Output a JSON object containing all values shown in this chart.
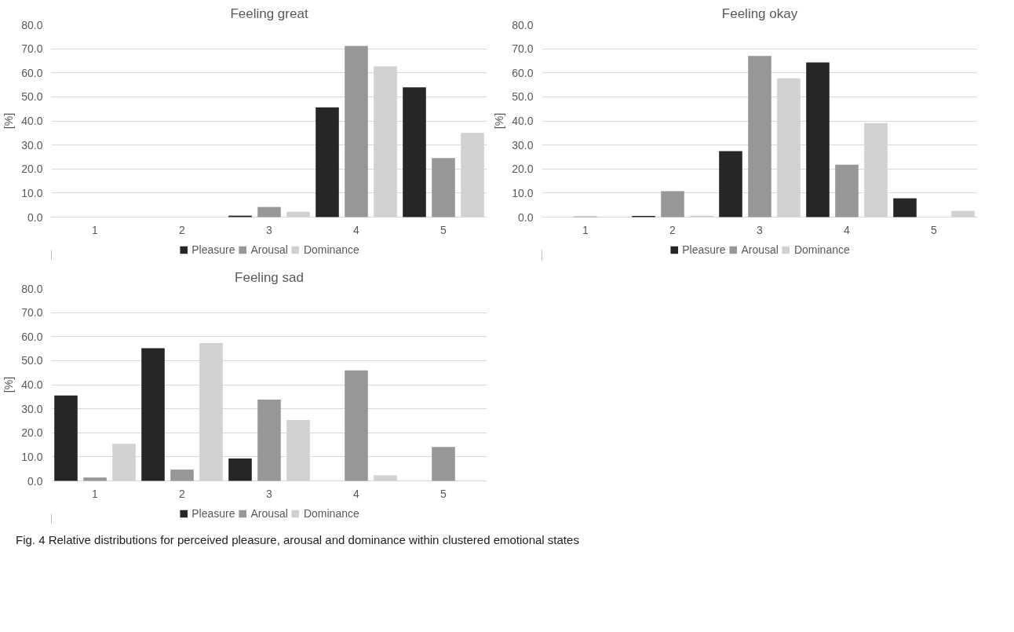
{
  "chart_data": [
    {
      "type": "bar",
      "title": "Feeling great",
      "ylabel": "[%]",
      "categories": [
        "1",
        "2",
        "3",
        "4",
        "5"
      ],
      "ylim": [
        0,
        80
      ],
      "yticks": [
        {
          "value": 0,
          "label": "0.0"
        },
        {
          "value": 10,
          "label": "10.0"
        },
        {
          "value": 20,
          "label": "20.0"
        },
        {
          "value": 30,
          "label": "30.0"
        },
        {
          "value": 40,
          "label": "40.0"
        },
        {
          "value": 50,
          "label": "50.0"
        },
        {
          "value": 60,
          "label": "60.0"
        },
        {
          "value": 70,
          "label": "70.0"
        },
        {
          "value": 80,
          "label": "80.0"
        }
      ],
      "grid": "y",
      "legend": "bottom",
      "series": [
        {
          "name": "Pleasure",
          "color": "#262626",
          "values": [
            0,
            0,
            0.6,
            45.6,
            54.0
          ]
        },
        {
          "name": "Arousal",
          "color": "#979797",
          "values": [
            0,
            0,
            4.2,
            71.2,
            24.6
          ]
        },
        {
          "name": "Dominance",
          "color": "#d0d1d0",
          "values": [
            0,
            0,
            2.2,
            62.7,
            35.0
          ]
        }
      ]
    },
    {
      "type": "bar",
      "title": "Feeling okay",
      "ylabel": "[%]",
      "categories": [
        "1",
        "2",
        "3",
        "4",
        "5"
      ],
      "ylim": [
        0,
        80
      ],
      "yticks": [
        {
          "value": 0,
          "label": "0.0"
        },
        {
          "value": 10,
          "label": "10.0"
        },
        {
          "value": 20,
          "label": "20.0"
        },
        {
          "value": 30,
          "label": "30.0"
        },
        {
          "value": 40,
          "label": "40.0"
        },
        {
          "value": 50,
          "label": "50.0"
        },
        {
          "value": 60,
          "label": "60.0"
        },
        {
          "value": 70,
          "label": "70.0"
        },
        {
          "value": 80,
          "label": "80.0"
        }
      ],
      "grid": "y",
      "legend": "bottom",
      "series": [
        {
          "name": "Pleasure",
          "color": "#262626",
          "values": [
            0,
            0.5,
            27.4,
            64.3,
            7.8
          ]
        },
        {
          "name": "Arousal",
          "color": "#979797",
          "values": [
            0.3,
            10.8,
            67.0,
            21.8,
            0
          ]
        },
        {
          "name": "Dominance",
          "color": "#d0d1d0",
          "values": [
            0,
            0.6,
            57.7,
            39.1,
            2.6
          ]
        }
      ]
    },
    {
      "type": "bar",
      "title": "Feeling sad",
      "ylabel": "[%]",
      "categories": [
        "1",
        "2",
        "3",
        "4",
        "5"
      ],
      "ylim": [
        0,
        80
      ],
      "yticks": [
        {
          "value": 0,
          "label": "0.0"
        },
        {
          "value": 10,
          "label": "10.0"
        },
        {
          "value": 20,
          "label": "20.0"
        },
        {
          "value": 30,
          "label": "30.0"
        },
        {
          "value": 40,
          "label": "40.0"
        },
        {
          "value": 50,
          "label": "50.0"
        },
        {
          "value": 60,
          "label": "60.0"
        },
        {
          "value": 70,
          "label": "70.0"
        },
        {
          "value": 80,
          "label": "80.0"
        }
      ],
      "grid": "y",
      "legend": "bottom",
      "annotations": [
        "Fig. 4 Relative distributions for perceived pleasure, arousal and dominance within clustered emotional states"
      ],
      "series": [
        {
          "name": "Pleasure",
          "color": "#262626",
          "values": [
            35.5,
            55.2,
            9.3,
            0,
            0
          ]
        },
        {
          "name": "Arousal",
          "color": "#979797",
          "values": [
            1.4,
            4.7,
            33.8,
            46.0,
            14.1
          ]
        },
        {
          "name": "Dominance",
          "color": "#d0d1d0",
          "values": [
            15.4,
            57.3,
            25.3,
            2.3,
            0
          ]
        }
      ]
    }
  ]
}
